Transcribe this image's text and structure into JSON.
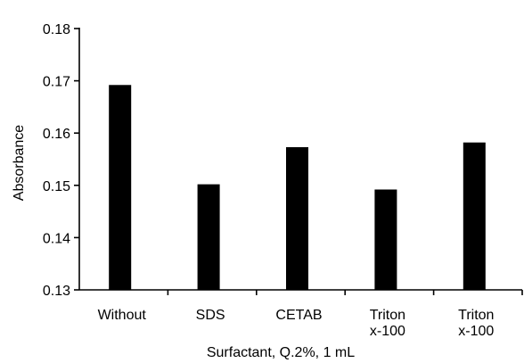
{
  "chart_data": {
    "type": "bar",
    "title": "",
    "xlabel": "Surfactant, Q.2%, 1 mL",
    "ylabel": "Absorbance",
    "ylim": [
      0.13,
      0.18
    ],
    "yticks": [
      "0.13",
      "0.14",
      "0.15",
      "0.16",
      "0.17",
      "0.18"
    ],
    "categories": [
      [
        "Without"
      ],
      [
        "SDS"
      ],
      [
        "CETAB"
      ],
      [
        "Triton",
        "x-100"
      ],
      [
        "Triton",
        "x-100"
      ]
    ],
    "values": [
      0.1692,
      0.1502,
      0.1573,
      0.1492,
      0.1582
    ],
    "grid": false,
    "legend": "none",
    "bar_color": "#000000"
  }
}
